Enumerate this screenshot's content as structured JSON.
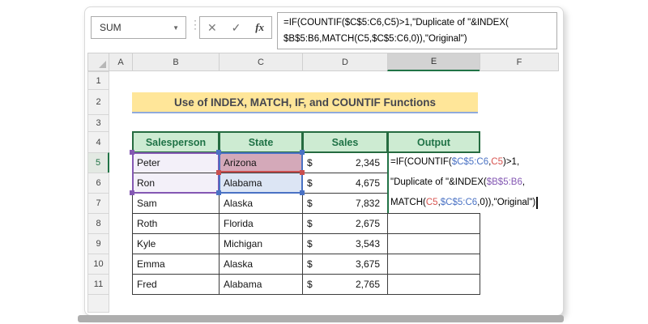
{
  "formula_bar": {
    "name_box_value": "SUM",
    "dropdown_arrow": "▼",
    "cancel_label": "✕",
    "enter_label": "✓",
    "fx_label": "fx",
    "formula_lines": [
      "=IF(COUNTIF($C$5:C6,C5)>1,\"Duplicate of \"&INDEX(",
      "$B$5:B6,MATCH(C5,$C$5:C6,0)),\"Original\")"
    ]
  },
  "sheet": {
    "column_headers": [
      "A",
      "B",
      "C",
      "D",
      "E",
      "F"
    ],
    "row_headers": [
      "1",
      "2",
      "3",
      "4",
      "5",
      "6",
      "7",
      "8",
      "9",
      "10",
      "11"
    ],
    "active_column": "E",
    "active_row": "5"
  },
  "banner": {
    "title": "Use of INDEX, MATCH, IF, and COUNTIF Functions"
  },
  "table": {
    "headers": [
      "Salesperson",
      "State",
      "Sales",
      "Output"
    ],
    "currency_symbol": "$",
    "rows": [
      {
        "salesperson": "Peter",
        "state": "Arizona",
        "sales": "2,345"
      },
      {
        "salesperson": "Ron",
        "state": "Alabama",
        "sales": "4,675"
      },
      {
        "salesperson": "Sam",
        "state": "Alaska",
        "sales": "7,832"
      },
      {
        "salesperson": "Roth",
        "state": "Florida",
        "sales": "2,675"
      },
      {
        "salesperson": "Kyle",
        "state": "Michigan",
        "sales": "3,543"
      },
      {
        "salesperson": "Emma",
        "state": "Alaska",
        "sales": "3,675"
      },
      {
        "salesperson": "Fred",
        "state": "Alabama",
        "sales": "2,765"
      }
    ]
  },
  "cell_formula": {
    "line1": [
      {
        "t": "=IF(COUNTIF(",
        "c": "#000000"
      },
      {
        "t": "$C$5:C6",
        "c": "#4a72c4"
      },
      {
        "t": ",",
        "c": "#000000"
      },
      {
        "t": "C5",
        "c": "#d85450"
      },
      {
        "t": ")>1,",
        "c": "#000000"
      }
    ],
    "line2": [
      {
        "t": "\"Duplicate of \"&INDEX(",
        "c": "#000000"
      },
      {
        "t": "$B$5:B6",
        "c": "#8458b3"
      },
      {
        "t": ",",
        "c": "#000000"
      }
    ],
    "line3": [
      {
        "t": "MATCH(",
        "c": "#000000"
      },
      {
        "t": "C5",
        "c": "#d85450"
      },
      {
        "t": ",",
        "c": "#000000"
      },
      {
        "t": "$C$5:C6",
        "c": "#4a72c4"
      },
      {
        "t": ",0)),\"Original\")",
        "c": "#000000"
      }
    ]
  },
  "colors": {
    "excel_green": "#217346",
    "ref_blue": "#4a72c4",
    "ref_red": "#d85450",
    "ref_purple": "#8458b3",
    "banner_fill": "#ffe699",
    "banner_underline": "#8faadc",
    "header_fill": "#cdebd2",
    "header_text": "#1f7246"
  }
}
